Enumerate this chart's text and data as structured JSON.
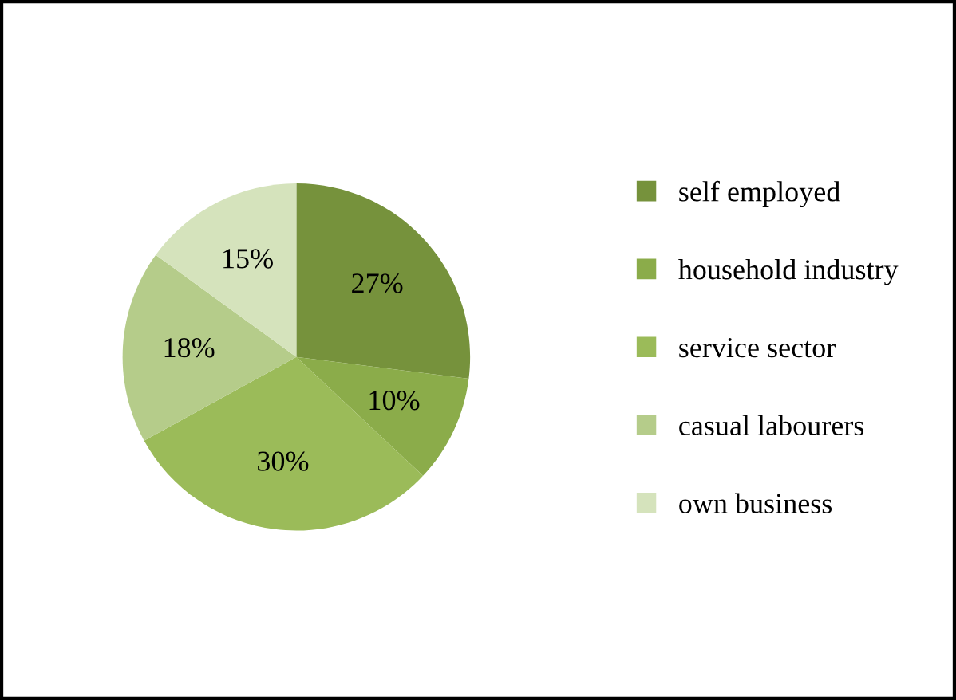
{
  "chart_data": {
    "type": "pie",
    "categories": [
      "self employed",
      "household industry",
      "service sector",
      "casual labourers",
      "own business"
    ],
    "values": [
      27,
      10,
      30,
      18,
      15
    ],
    "colors": [
      "#76923c",
      "#8bac4a",
      "#9bbb59",
      "#b5cc8a",
      "#d5e3bc"
    ],
    "value_labels": [
      "27%",
      "10%",
      "30%",
      "18%",
      "15%"
    ],
    "legend": "right"
  }
}
